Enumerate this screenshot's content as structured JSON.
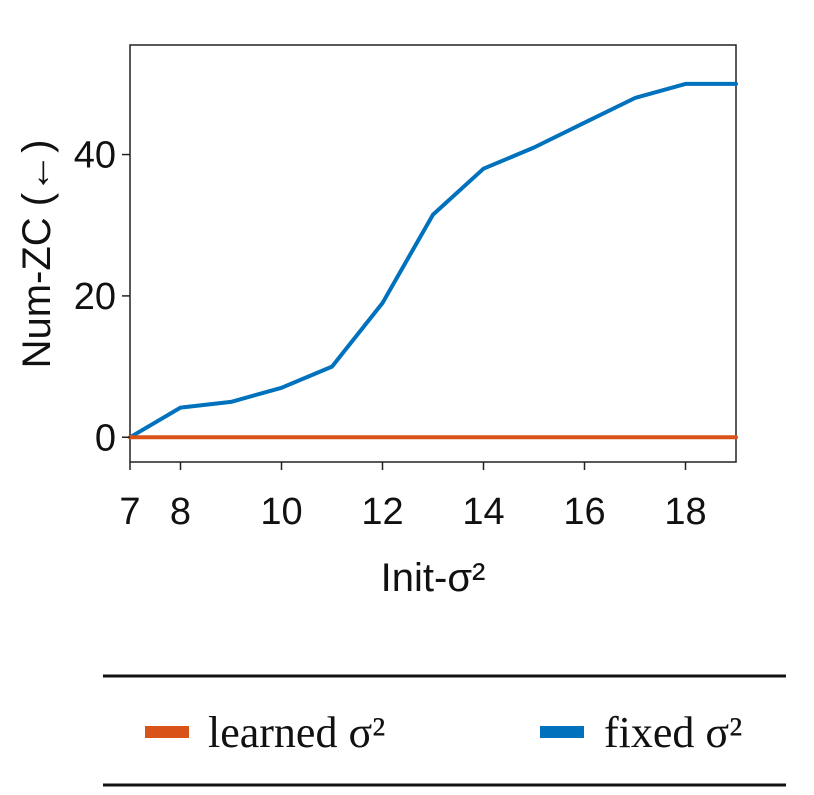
{
  "chart_data": {
    "type": "line",
    "xlabel": "Init-σ²",
    "ylabel": "Num-ZC (←)",
    "xlim": [
      7,
      19
    ],
    "ylim": [
      -3.5,
      55.5
    ],
    "xticks": [
      7,
      8,
      10,
      12,
      14,
      16,
      18
    ],
    "yticks": [
      0,
      20,
      40
    ],
    "grid": false,
    "legend_position": "bottom",
    "series": [
      {
        "name": "learned σ²",
        "color": "#D95319",
        "x": [
          7,
          19
        ],
        "y": [
          0,
          0
        ]
      },
      {
        "name": "fixed σ²",
        "color": "#0072BD",
        "x": [
          7,
          8,
          9,
          10,
          11,
          12,
          13,
          14,
          15,
          16,
          17,
          18,
          19
        ],
        "y": [
          0,
          4.2,
          5,
          7,
          10,
          19,
          31.5,
          38,
          41,
          44.5,
          48,
          50,
          50
        ]
      }
    ]
  }
}
